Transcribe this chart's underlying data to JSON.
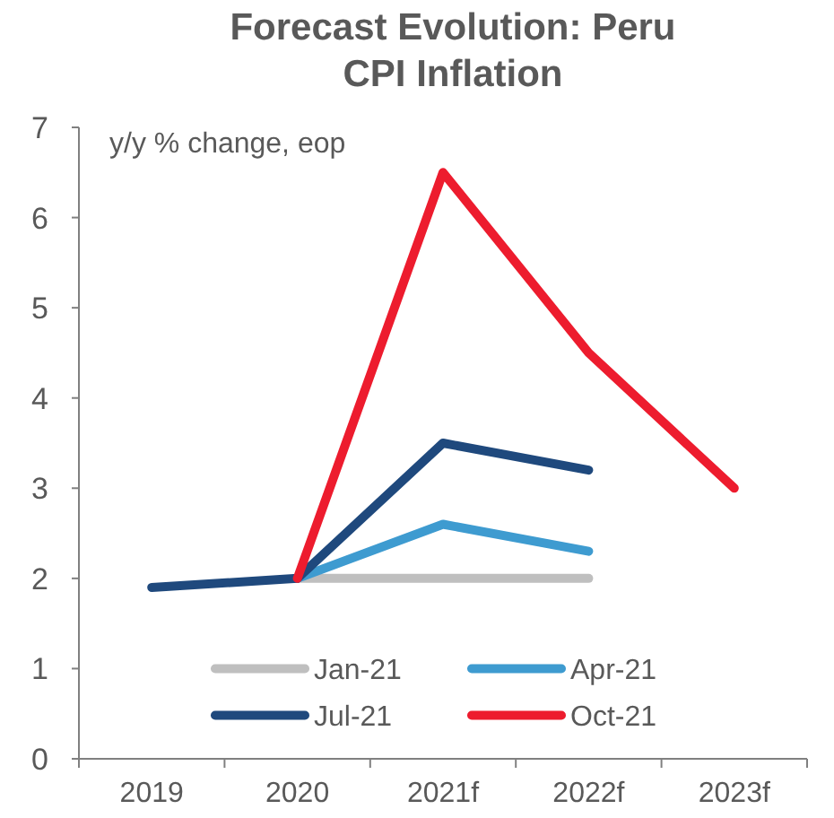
{
  "chart_data": {
    "type": "line",
    "title": "Forecast Evolution: Peru\nCPI Inflation",
    "ylabel": "y/y % change, eop",
    "categories": [
      "2019",
      "2020",
      "2021f",
      "2022f",
      "2023f"
    ],
    "series": [
      {
        "name": "Jan-21",
        "color": "#bfbfbf",
        "values": [
          null,
          2.0,
          2.0,
          2.0,
          null
        ]
      },
      {
        "name": "Apr-21",
        "color": "#3e9bd0",
        "values": [
          null,
          2.0,
          2.6,
          2.3,
          null
        ]
      },
      {
        "name": "Jul-21",
        "color": "#1f497d",
        "values": [
          1.9,
          2.0,
          3.5,
          3.2,
          null
        ]
      },
      {
        "name": "Oct-21",
        "color": "#ed1c2e",
        "values": [
          null,
          2.0,
          6.5,
          4.5,
          3.0
        ]
      }
    ],
    "ylim": [
      0,
      7
    ],
    "yticks": [
      0,
      1,
      2,
      3,
      4,
      5,
      6,
      7
    ],
    "grid": false,
    "legend": "bottom",
    "line_style": "solid"
  }
}
